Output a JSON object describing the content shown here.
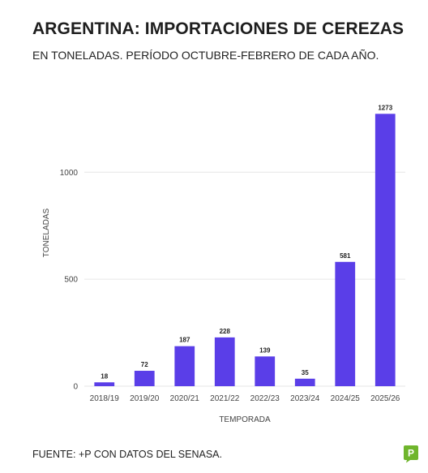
{
  "header": {
    "title": "ARGENTINA: IMPORTACIONES DE CEREZAS",
    "subtitle": "EN TONELADAS. PERÍODO OCTUBRE-FEBRERO DE CADA AÑO."
  },
  "footer": {
    "source": "FUENTE: +P CON DATOS DEL SENASA."
  },
  "logo": {
    "text": "+P",
    "color": "#6fb52c"
  },
  "colors": {
    "bar": "#5a3ee8",
    "grid": "#e6e6e6",
    "axis_text": "#444444"
  },
  "chart_data": {
    "type": "bar",
    "categories": [
      "2018/19",
      "2019/20",
      "2020/21",
      "2021/22",
      "2022/23",
      "2023/24",
      "2024/25",
      "2025/26"
    ],
    "values": [
      18,
      72,
      187,
      228,
      139,
      35,
      581,
      1273
    ],
    "data_labels": [
      "18",
      "72",
      "187",
      "228",
      "139",
      "35",
      "581",
      "1273"
    ],
    "xlabel": "TEMPORADA",
    "ylabel": "TONELADAS",
    "yticks": [
      0,
      500,
      1000
    ],
    "ylim": [
      0,
      1350
    ],
    "grid": true,
    "legend": "none"
  }
}
